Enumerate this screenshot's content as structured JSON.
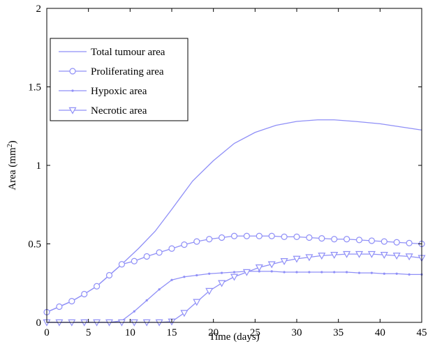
{
  "chart_data": {
    "type": "line",
    "title": "",
    "xlabel": "Time (days)",
    "ylabel": "Area (mm",
    "ylabel_sup": "2",
    "ylabel_close": ")",
    "xlim": [
      0,
      45
    ],
    "ylim": [
      0,
      2
    ],
    "xticks": [
      0,
      5,
      10,
      15,
      20,
      25,
      30,
      35,
      40,
      45
    ],
    "yticks": [
      0,
      0.5,
      1,
      1.5,
      2
    ],
    "ytick_labels": [
      "0",
      "0.5",
      "1",
      "1.5",
      "2"
    ],
    "grid": false,
    "legend_position": "top-left",
    "line_color": "#8f8ff7",
    "series": [
      {
        "name": "Total tumour area",
        "marker": "none",
        "x": [
          0,
          1.5,
          3,
          4.5,
          6,
          7.5,
          9,
          11,
          13,
          15,
          17.5,
          20,
          22.5,
          25,
          27.5,
          30,
          32.5,
          34.5,
          37,
          40,
          42.5,
          45
        ],
        "y": [
          0.065,
          0.1,
          0.135,
          0.18,
          0.23,
          0.3,
          0.37,
          0.47,
          0.58,
          0.72,
          0.9,
          1.03,
          1.14,
          1.21,
          1.255,
          1.28,
          1.29,
          1.29,
          1.28,
          1.265,
          1.245,
          1.225
        ]
      },
      {
        "name": "Proliferating area",
        "marker": "circle",
        "x": [
          0,
          1.5,
          3,
          4.5,
          6,
          7.5,
          9,
          10.5,
          12,
          13.5,
          15,
          16.5,
          18,
          19.5,
          21,
          22.5,
          24,
          25.5,
          27,
          28.5,
          30,
          31.5,
          33,
          34.5,
          36,
          37.5,
          39,
          40.5,
          42,
          43.5,
          45
        ],
        "y": [
          0.065,
          0.1,
          0.135,
          0.18,
          0.23,
          0.3,
          0.37,
          0.39,
          0.42,
          0.445,
          0.47,
          0.495,
          0.515,
          0.53,
          0.54,
          0.55,
          0.55,
          0.55,
          0.55,
          0.545,
          0.545,
          0.54,
          0.535,
          0.53,
          0.53,
          0.525,
          0.52,
          0.515,
          0.51,
          0.505,
          0.5
        ]
      },
      {
        "name": "Hypoxic area",
        "marker": "dot",
        "x": [
          0,
          1.5,
          3,
          4.5,
          6,
          7.5,
          9,
          10.5,
          12,
          13.5,
          15,
          16.5,
          18,
          19.5,
          21,
          22.5,
          24,
          25.5,
          27,
          28.5,
          30,
          31.5,
          33,
          34.5,
          36,
          37.5,
          39,
          40.5,
          42,
          43.5,
          45
        ],
        "y": [
          0,
          0,
          0,
          0,
          0,
          0,
          0.01,
          0.07,
          0.14,
          0.21,
          0.27,
          0.29,
          0.3,
          0.31,
          0.315,
          0.32,
          0.325,
          0.325,
          0.325,
          0.32,
          0.32,
          0.32,
          0.32,
          0.32,
          0.32,
          0.315,
          0.315,
          0.31,
          0.31,
          0.305,
          0.305
        ]
      },
      {
        "name": "Necrotic area",
        "marker": "triangle-down",
        "x": [
          0,
          1.5,
          3,
          4.5,
          6,
          7.5,
          9,
          10.5,
          12,
          13.5,
          15,
          16.5,
          18,
          19.5,
          21,
          22.5,
          24,
          25.5,
          27,
          28.5,
          30,
          31.5,
          33,
          34.5,
          36,
          37.5,
          39,
          40.5,
          42,
          43.5,
          45
        ],
        "y": [
          0,
          0,
          0,
          0,
          0,
          0,
          0,
          0,
          0,
          0,
          0.005,
          0.06,
          0.13,
          0.2,
          0.25,
          0.29,
          0.32,
          0.35,
          0.37,
          0.39,
          0.405,
          0.415,
          0.425,
          0.43,
          0.435,
          0.435,
          0.435,
          0.43,
          0.425,
          0.42,
          0.41
        ]
      }
    ]
  }
}
